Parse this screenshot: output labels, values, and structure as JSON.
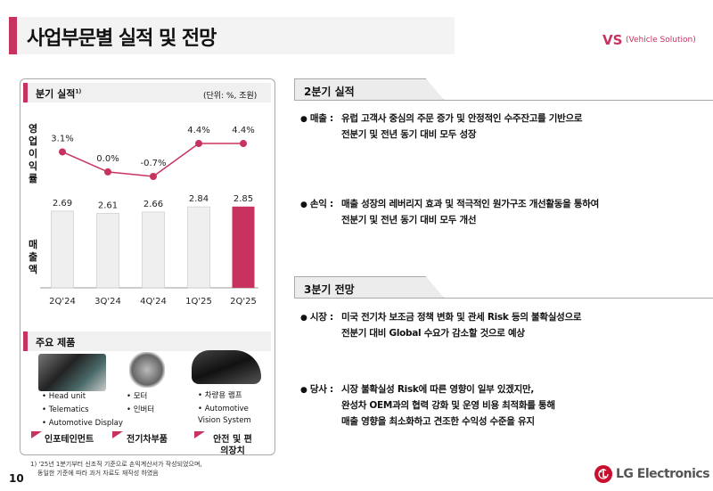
{
  "header": {
    "title": "사업부문별 실적 및 전망",
    "division": "VS",
    "division_full": "(Vehicle Solution)"
  },
  "left": {
    "quarterly": {
      "title": "분기 실적",
      "sup": "1)",
      "unit": "(단위: %, 조원)",
      "label_margin": "영업이익률",
      "label_sales": "매출액"
    },
    "products": {
      "title": "주요 제품",
      "groups": [
        {
          "items": [
            "Head unit",
            "Telematics",
            "Automotive Display"
          ],
          "category": "인포테인먼트",
          "image": "infotainment-dashboard"
        },
        {
          "items": [
            "모터",
            "인버터"
          ],
          "category": "전기차부품",
          "image": "ev-motor"
        },
        {
          "items": [
            "차량용 램프",
            "Automotive Vision System"
          ],
          "category": "안전 및 편의장치",
          "image": "vehicle-lamp"
        }
      ]
    }
  },
  "chart_data": {
    "type": "bar+line",
    "categories": [
      "2Q'24",
      "3Q'24",
      "4Q'24",
      "1Q'25",
      "2Q'25"
    ],
    "series": [
      {
        "name": "매출액",
        "type": "bar",
        "unit": "조원",
        "values": [
          2.69,
          2.61,
          2.66,
          2.84,
          2.85
        ],
        "labels": [
          "2.69",
          "2.61",
          "2.66",
          "2.84",
          "2.85"
        ],
        "highlight_index": 4
      },
      {
        "name": "영업이익률",
        "type": "line",
        "unit": "%",
        "values": [
          3.1,
          0.0,
          -0.7,
          4.4,
          4.4
        ],
        "labels": [
          "3.1%",
          "0.0%",
          "-0.7%",
          "4.4%",
          "4.4%"
        ]
      }
    ],
    "colors": {
      "bar": "#efefef",
      "bar_highlight": "#c8325f",
      "line": "#c8325f"
    }
  },
  "right": {
    "q2": {
      "title": "2분기 실적",
      "bullets": [
        {
          "label": "매출 :",
          "lines": [
            "유럽 고객사 중심의 주문 증가 및 안정적인 수주잔고를 기반으로",
            "전분기 및 전년 동기 대비 모두 성장"
          ]
        },
        {
          "label": "손익 :",
          "lines": [
            "매출 성장의 레버리지 효과 및 적극적인 원가구조 개선활동을 통하여",
            "전분기 및 전년 동기 대비 모두 개선"
          ]
        }
      ]
    },
    "q3": {
      "title": "3분기 전망",
      "bullets": [
        {
          "label": "시장 :",
          "lines": [
            "미국 전기차 보조금 정책 변화 및 관세 Risk 등의 불확실성으로",
            "전분기 대비 Global 수요가 감소할 것으로 예상"
          ]
        },
        {
          "label": "당사 :",
          "lines": [
            "시장 불확실성 Risk에 따른 영향이 일부 있겠지만,",
            "완성차 OEM과의 협력 강화 및 운영 비용 최적화를 통해",
            "매출 영향을 최소화하고 견조한 수익성 수준을 유지"
          ]
        }
      ]
    }
  },
  "footer": {
    "footnote": [
      "1) '25년 1분기부터 신조직 기준으로 손익계산서가 작성되었으며,",
      "동일한 기준에 따라 과거 자료도 재작성 하였음"
    ],
    "page": "10",
    "brand": "LG Electronics"
  }
}
